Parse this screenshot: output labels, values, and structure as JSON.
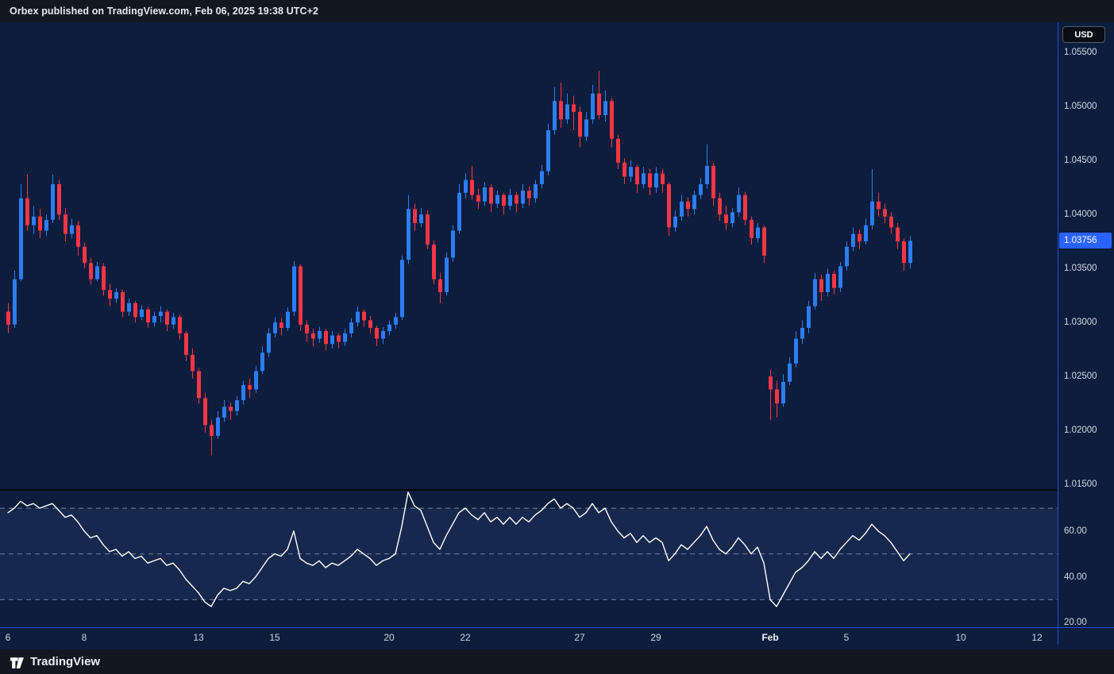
{
  "header": {
    "attribution": "Orbex published on TradingView.com, Feb 06, 2025 19:38 UTC+2"
  },
  "price_scale": {
    "currency_label": "USD",
    "ticks": [
      "1.05500",
      "1.05000",
      "1.04500",
      "1.04000",
      "1.03500",
      "1.03000",
      "1.02500",
      "1.02000",
      "1.01500"
    ],
    "last_price_label": "1.03756"
  },
  "rsi_scale": {
    "ticks": [
      "60.00",
      "40.00",
      "20.00"
    ]
  },
  "time_scale": {
    "labels": [
      {
        "text": "6",
        "bar": 0
      },
      {
        "text": "8",
        "bar": 12
      },
      {
        "text": "13",
        "bar": 30
      },
      {
        "text": "15",
        "bar": 42
      },
      {
        "text": "20",
        "bar": 60
      },
      {
        "text": "22",
        "bar": 72
      },
      {
        "text": "27",
        "bar": 90
      },
      {
        "text": "29",
        "bar": 102
      },
      {
        "text": "Feb",
        "bar": 120,
        "bold": true
      },
      {
        "text": "5",
        "bar": 132
      },
      {
        "text": "10",
        "bar": 150
      },
      {
        "text": "12",
        "bar": 162
      }
    ]
  },
  "footer": {
    "brand": "TradingView"
  },
  "colors": {
    "up": "#2d7df2",
    "down": "#f23645",
    "accent": "#2962ff",
    "axis_line": "#2450cf",
    "rsi_line": "#ffffff",
    "level": "rgba(200,206,222,0.55)",
    "band": "rgba(130,160,255,0.09)",
    "chart_bg": "#0c1d3d",
    "bar_bg": "#131722"
  },
  "chart_data": [
    {
      "type": "candlestick",
      "name": "price",
      "currency": "USD",
      "ylim": [
        1.0145,
        1.0578
      ],
      "bar_spacing": 8,
      "x_offset": 10,
      "last_price": 1.03756,
      "candles": [
        [
          1.031,
          1.0318,
          1.029,
          1.0298
        ],
        [
          1.0298,
          1.0348,
          1.0295,
          1.034
        ],
        [
          1.034,
          1.0428,
          1.0338,
          1.0415
        ],
        [
          1.0415,
          1.0437,
          1.0385,
          1.039
        ],
        [
          1.039,
          1.0408,
          1.0382,
          1.0398
        ],
        [
          1.0398,
          1.0405,
          1.0378,
          1.0385
        ],
        [
          1.0385,
          1.04,
          1.038,
          1.0395
        ],
        [
          1.0395,
          1.0437,
          1.0392,
          1.0428
        ],
        [
          1.0428,
          1.0432,
          1.0395,
          1.04
        ],
        [
          1.04,
          1.0406,
          1.0375,
          1.0382
        ],
        [
          1.0382,
          1.0396,
          1.0378,
          1.039
        ],
        [
          1.039,
          1.0394,
          1.0362,
          1.037
        ],
        [
          1.037,
          1.0374,
          1.035,
          1.0355
        ],
        [
          1.0355,
          1.036,
          1.0335,
          1.034
        ],
        [
          1.034,
          1.0356,
          1.0338,
          1.0352
        ],
        [
          1.0352,
          1.0355,
          1.0325,
          1.033
        ],
        [
          1.033,
          1.0336,
          1.0315,
          1.0322
        ],
        [
          1.0322,
          1.0332,
          1.0318,
          1.0328
        ],
        [
          1.0328,
          1.033,
          1.0305,
          1.031
        ],
        [
          1.031,
          1.0322,
          1.0306,
          1.0318
        ],
        [
          1.0318,
          1.032,
          1.03,
          1.0305
        ],
        [
          1.0305,
          1.0316,
          1.0302,
          1.0312
        ],
        [
          1.0312,
          1.0314,
          1.0295,
          1.03
        ],
        [
          1.03,
          1.031,
          1.0296,
          1.0306
        ],
        [
          1.0306,
          1.0315,
          1.03,
          1.031
        ],
        [
          1.031,
          1.0312,
          1.0292,
          1.0298
        ],
        [
          1.0298,
          1.0309,
          1.0294,
          1.0305
        ],
        [
          1.0305,
          1.0307,
          1.0284,
          1.029
        ],
        [
          1.029,
          1.0292,
          1.0264,
          1.027
        ],
        [
          1.027,
          1.0276,
          1.0248,
          1.0255
        ],
        [
          1.0255,
          1.0258,
          1.0225,
          1.023
        ],
        [
          1.023,
          1.0235,
          1.0198,
          1.0205
        ],
        [
          1.0205,
          1.021,
          1.0177,
          1.0195
        ],
        [
          1.0195,
          1.0218,
          1.0192,
          1.0212
        ],
        [
          1.0212,
          1.0228,
          1.0208,
          1.0222
        ],
        [
          1.0222,
          1.0226,
          1.021,
          1.0218
        ],
        [
          1.0218,
          1.0232,
          1.0214,
          1.0228
        ],
        [
          1.0228,
          1.0246,
          1.0224,
          1.0242
        ],
        [
          1.0242,
          1.0248,
          1.023,
          1.0238
        ],
        [
          1.0238,
          1.026,
          1.0235,
          1.0255
        ],
        [
          1.0255,
          1.0278,
          1.0252,
          1.0272
        ],
        [
          1.0272,
          1.0295,
          1.0268,
          1.029
        ],
        [
          1.029,
          1.0305,
          1.0286,
          1.03
        ],
        [
          1.03,
          1.0304,
          1.0288,
          1.0295
        ],
        [
          1.0295,
          1.0314,
          1.0292,
          1.031
        ],
        [
          1.031,
          1.0357,
          1.0306,
          1.0352
        ],
        [
          1.0352,
          1.0354,
          1.0292,
          1.0298
        ],
        [
          1.0298,
          1.0302,
          1.0282,
          1.029
        ],
        [
          1.029,
          1.0294,
          1.0278,
          1.0285
        ],
        [
          1.0285,
          1.0296,
          1.0281,
          1.0292
        ],
        [
          1.0292,
          1.0294,
          1.0274,
          1.028
        ],
        [
          1.028,
          1.0292,
          1.0276,
          1.0288
        ],
        [
          1.0288,
          1.029,
          1.0276,
          1.0282
        ],
        [
          1.0282,
          1.0294,
          1.0278,
          1.029
        ],
        [
          1.029,
          1.0304,
          1.0286,
          1.03
        ],
        [
          1.03,
          1.0315,
          1.0296,
          1.031
        ],
        [
          1.031,
          1.0312,
          1.0296,
          1.0302
        ],
        [
          1.0302,
          1.0306,
          1.029,
          1.0295
        ],
        [
          1.0295,
          1.0297,
          1.0278,
          1.0285
        ],
        [
          1.0285,
          1.0296,
          1.028,
          1.0292
        ],
        [
          1.0292,
          1.0302,
          1.0288,
          1.0298
        ],
        [
          1.0298,
          1.0309,
          1.0294,
          1.0305
        ],
        [
          1.0305,
          1.0362,
          1.0302,
          1.0358
        ],
        [
          1.0358,
          1.0418,
          1.0354,
          1.0405
        ],
        [
          1.0405,
          1.041,
          1.0385,
          1.0392
        ],
        [
          1.0392,
          1.0406,
          1.0388,
          1.04
        ],
        [
          1.04,
          1.0404,
          1.0368,
          1.0372
        ],
        [
          1.0372,
          1.0376,
          1.0335,
          1.034
        ],
        [
          1.034,
          1.0346,
          1.0318,
          1.0328
        ],
        [
          1.0328,
          1.0365,
          1.0325,
          1.036
        ],
        [
          1.036,
          1.039,
          1.0356,
          1.0385
        ],
        [
          1.0385,
          1.0428,
          1.0382,
          1.042
        ],
        [
          1.042,
          1.0438,
          1.0415,
          1.0432
        ],
        [
          1.0432,
          1.0445,
          1.0414,
          1.0418
        ],
        [
          1.0418,
          1.0424,
          1.0405,
          1.0412
        ],
        [
          1.0412,
          1.043,
          1.0408,
          1.0425
        ],
        [
          1.0425,
          1.0428,
          1.0402,
          1.041
        ],
        [
          1.041,
          1.0422,
          1.0406,
          1.0418
        ],
        [
          1.0418,
          1.042,
          1.04,
          1.0408
        ],
        [
          1.0408,
          1.0424,
          1.0404,
          1.0418
        ],
        [
          1.0418,
          1.0421,
          1.0402,
          1.041
        ],
        [
          1.041,
          1.0428,
          1.0406,
          1.0422
        ],
        [
          1.0422,
          1.0426,
          1.0408,
          1.0415
        ],
        [
          1.0415,
          1.0432,
          1.0411,
          1.0428
        ],
        [
          1.0428,
          1.0446,
          1.0424,
          1.044
        ],
        [
          1.044,
          1.0484,
          1.0436,
          1.0478
        ],
        [
          1.0478,
          1.0518,
          1.0474,
          1.0505
        ],
        [
          1.0505,
          1.0522,
          1.048,
          1.0488
        ],
        [
          1.0488,
          1.0512,
          1.0484,
          1.0502
        ],
        [
          1.0502,
          1.051,
          1.0478,
          1.0495
        ],
        [
          1.0495,
          1.05,
          1.0462,
          1.0472
        ],
        [
          1.0472,
          1.0495,
          1.0468,
          1.0488
        ],
        [
          1.0488,
          1.052,
          1.0484,
          1.0512
        ],
        [
          1.0512,
          1.0533,
          1.0488,
          1.0492
        ],
        [
          1.0492,
          1.0515,
          1.0486,
          1.0505
        ],
        [
          1.0505,
          1.0508,
          1.0462,
          1.047
        ],
        [
          1.047,
          1.0474,
          1.0442,
          1.0448
        ],
        [
          1.0448,
          1.0452,
          1.0428,
          1.0435
        ],
        [
          1.0435,
          1.045,
          1.043,
          1.0444
        ],
        [
          1.0444,
          1.0446,
          1.042,
          1.0428
        ],
        [
          1.0428,
          1.0444,
          1.0424,
          1.0438
        ],
        [
          1.0438,
          1.0442,
          1.0418,
          1.0425
        ],
        [
          1.0425,
          1.0444,
          1.042,
          1.0438
        ],
        [
          1.0438,
          1.0442,
          1.042,
          1.0428
        ],
        [
          1.0428,
          1.043,
          1.038,
          1.0388
        ],
        [
          1.0388,
          1.0404,
          1.0384,
          1.0398
        ],
        [
          1.0398,
          1.0418,
          1.0394,
          1.0412
        ],
        [
          1.0412,
          1.0416,
          1.0398,
          1.0405
        ],
        [
          1.0405,
          1.0422,
          1.04,
          1.0418
        ],
        [
          1.0418,
          1.0434,
          1.0414,
          1.0428
        ],
        [
          1.0428,
          1.0465,
          1.0424,
          1.0445
        ],
        [
          1.0445,
          1.0448,
          1.0408,
          1.0415
        ],
        [
          1.0415,
          1.042,
          1.0394,
          1.04
        ],
        [
          1.04,
          1.0408,
          1.0386,
          1.0392
        ],
        [
          1.0392,
          1.0406,
          1.0388,
          1.0402
        ],
        [
          1.0402,
          1.0425,
          1.0398,
          1.0418
        ],
        [
          1.0418,
          1.0421,
          1.039,
          1.0395
        ],
        [
          1.0395,
          1.0398,
          1.0372,
          1.0378
        ],
        [
          1.0378,
          1.0392,
          1.0374,
          1.0388
        ],
        [
          1.0388,
          1.039,
          1.0355,
          1.0362
        ],
        [
          1.025,
          1.0256,
          1.021,
          1.0238
        ],
        [
          1.0238,
          1.0246,
          1.0212,
          1.0225
        ],
        [
          1.0225,
          1.0252,
          1.0222,
          1.0245
        ],
        [
          1.0245,
          1.0268,
          1.0242,
          1.0262
        ],
        [
          1.0262,
          1.0292,
          1.0258,
          1.0285
        ],
        [
          1.0285,
          1.0302,
          1.028,
          1.0295
        ],
        [
          1.0295,
          1.032,
          1.029,
          1.0315
        ],
        [
          1.0315,
          1.0346,
          1.0312,
          1.034
        ],
        [
          1.034,
          1.0344,
          1.032,
          1.0328
        ],
        [
          1.0328,
          1.035,
          1.0324,
          1.0345
        ],
        [
          1.0345,
          1.0348,
          1.0326,
          1.0332
        ],
        [
          1.0332,
          1.0356,
          1.0328,
          1.0352
        ],
        [
          1.0352,
          1.0375,
          1.0348,
          1.037
        ],
        [
          1.037,
          1.0388,
          1.0366,
          1.0382
        ],
        [
          1.0382,
          1.0386,
          1.0368,
          1.0375
        ],
        [
          1.0375,
          1.0396,
          1.0372,
          1.039
        ],
        [
          1.039,
          1.0442,
          1.0386,
          1.0412
        ],
        [
          1.0412,
          1.042,
          1.0398,
          1.0405
        ],
        [
          1.0405,
          1.041,
          1.0392,
          1.0398
        ],
        [
          1.0398,
          1.0402,
          1.0382,
          1.0388
        ],
        [
          1.0388,
          1.0392,
          1.0368,
          1.0375
        ],
        [
          1.0375,
          1.0378,
          1.0348,
          1.0355
        ],
        [
          1.0355,
          1.038,
          1.035,
          1.03756
        ]
      ]
    },
    {
      "type": "line",
      "name": "rsi",
      "ylim": [
        18,
        78
      ],
      "levels": [
        70,
        50,
        30
      ],
      "band": [
        30,
        70
      ],
      "values": [
        68,
        70,
        73,
        71,
        72,
        70,
        71,
        72,
        69,
        66,
        67,
        64,
        60,
        57,
        58,
        54,
        51,
        52,
        49,
        51,
        48,
        49,
        46,
        47,
        48,
        45,
        46,
        43,
        39,
        36,
        33,
        29,
        27,
        32,
        35,
        34,
        35,
        38,
        37,
        40,
        44,
        48,
        50,
        49,
        52,
        60,
        48,
        46,
        45,
        47,
        44,
        46,
        45,
        47,
        49,
        52,
        50,
        48,
        45,
        47,
        48,
        50,
        62,
        77,
        71,
        69,
        62,
        55,
        52,
        58,
        63,
        68,
        70,
        67,
        65,
        68,
        64,
        66,
        63,
        66,
        63,
        66,
        64,
        67,
        69,
        72,
        74,
        70,
        72,
        70,
        66,
        68,
        72,
        68,
        70,
        64,
        60,
        57,
        59,
        55,
        58,
        55,
        57,
        55,
        47,
        50,
        54,
        52,
        55,
        58,
        62,
        56,
        52,
        50,
        53,
        57,
        54,
        50,
        53,
        46,
        30,
        27,
        32,
        37,
        42,
        44,
        47,
        51,
        48,
        51,
        48,
        52,
        55,
        58,
        56,
        59,
        63,
        60,
        58,
        55,
        51,
        47,
        50
      ]
    }
  ]
}
